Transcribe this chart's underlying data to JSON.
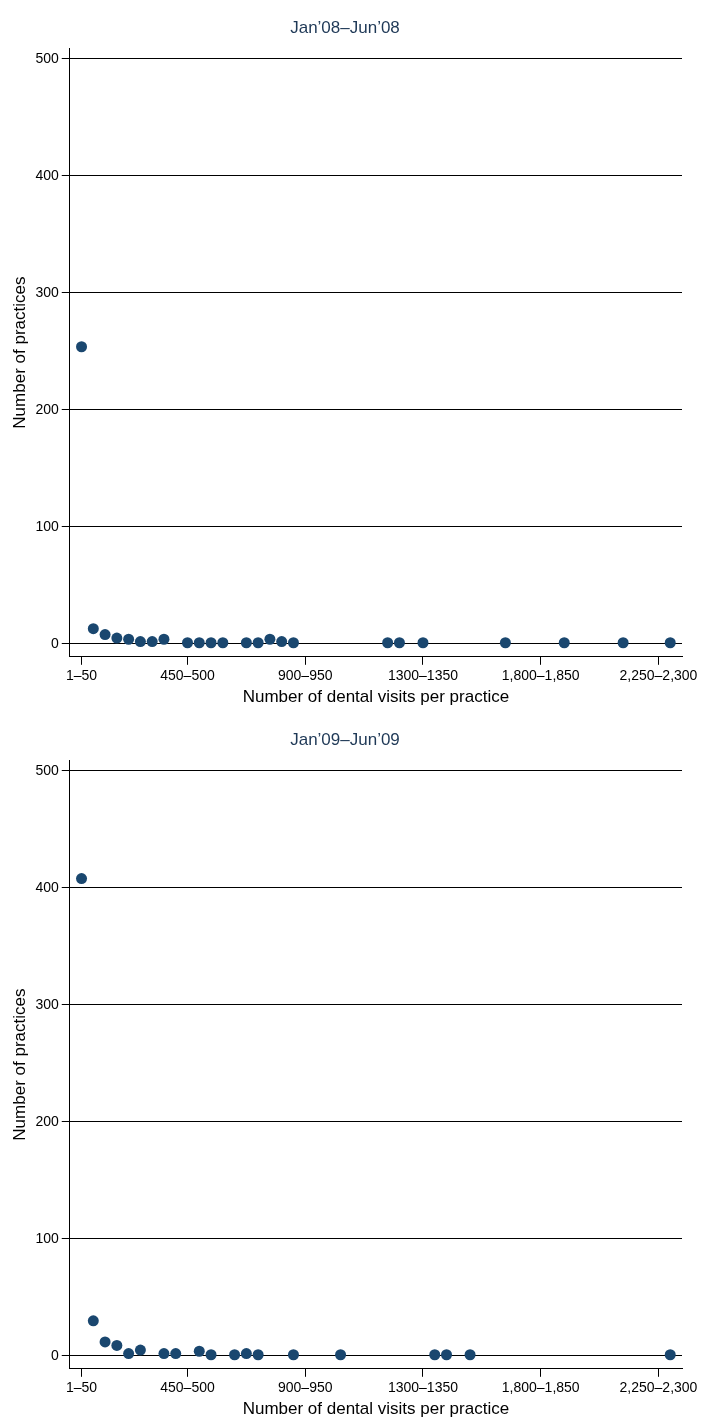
{
  "chart_data": [
    {
      "type": "scatter",
      "title": "Jan’08–Jun’08",
      "xlabel": "Number of dental visits per practice",
      "ylabel": "Number of practices",
      "categories": [
        "1–50",
        null,
        null,
        null,
        null,
        null,
        null,
        null,
        null,
        "450–500",
        null,
        null,
        null,
        null,
        null,
        null,
        null,
        null,
        null,
        "900–950",
        null,
        null,
        null,
        null,
        null,
        null,
        null,
        null,
        null,
        "1300–1350",
        null,
        null,
        null,
        null,
        null,
        null,
        null,
        null,
        null,
        "1,800–1,850",
        null,
        null,
        null,
        null,
        null,
        null,
        null,
        null,
        null,
        "2,250–2,300",
        null
      ],
      "series": [
        {
          "color": "#1a476f",
          "values": [
            254,
            13,
            8,
            5,
            4,
            2,
            2,
            4,
            null,
            1,
            1,
            1,
            1,
            null,
            1,
            1,
            4,
            2,
            1,
            null,
            null,
            null,
            null,
            null,
            null,
            null,
            1,
            1,
            null,
            1,
            null,
            null,
            null,
            null,
            null,
            null,
            1,
            null,
            null,
            null,
            null,
            1,
            null,
            null,
            null,
            null,
            1,
            null,
            null,
            null,
            1
          ]
        }
      ],
      "ylim": [
        -11,
        509
      ],
      "yticks": [
        0,
        100,
        200,
        300,
        400,
        500
      ],
      "grid": "y",
      "legend": false,
      "marker": "circle"
    },
    {
      "type": "scatter",
      "title": "Jan’09–Jun’09",
      "xlabel": "Number of dental visits per practice",
      "ylabel": "Number of practices",
      "categories": [
        "1–50",
        null,
        null,
        null,
        null,
        null,
        null,
        null,
        null,
        "450–500",
        null,
        null,
        null,
        null,
        null,
        null,
        null,
        null,
        null,
        "900–950",
        null,
        null,
        null,
        null,
        null,
        null,
        null,
        null,
        null,
        "1300–1350",
        null,
        null,
        null,
        null,
        null,
        null,
        null,
        null,
        null,
        "1,800–1,850",
        null,
        null,
        null,
        null,
        null,
        null,
        null,
        null,
        null,
        "2,250–2,300",
        null
      ],
      "series": [
        {
          "color": "#1a476f",
          "values": [
            408,
            30,
            12,
            9,
            2,
            5,
            null,
            2,
            2,
            null,
            4,
            1,
            null,
            1,
            2,
            1,
            null,
            null,
            1,
            null,
            null,
            null,
            1,
            null,
            null,
            null,
            null,
            null,
            null,
            null,
            1,
            1,
            null,
            1,
            null,
            null,
            null,
            null,
            null,
            null,
            null,
            null,
            null,
            null,
            null,
            null,
            null,
            null,
            null,
            null,
            1
          ]
        }
      ],
      "ylim": [
        -11,
        509
      ],
      "yticks": [
        0,
        100,
        200,
        300,
        400,
        500
      ],
      "grid": "y",
      "legend": false,
      "marker": "circle"
    }
  ]
}
